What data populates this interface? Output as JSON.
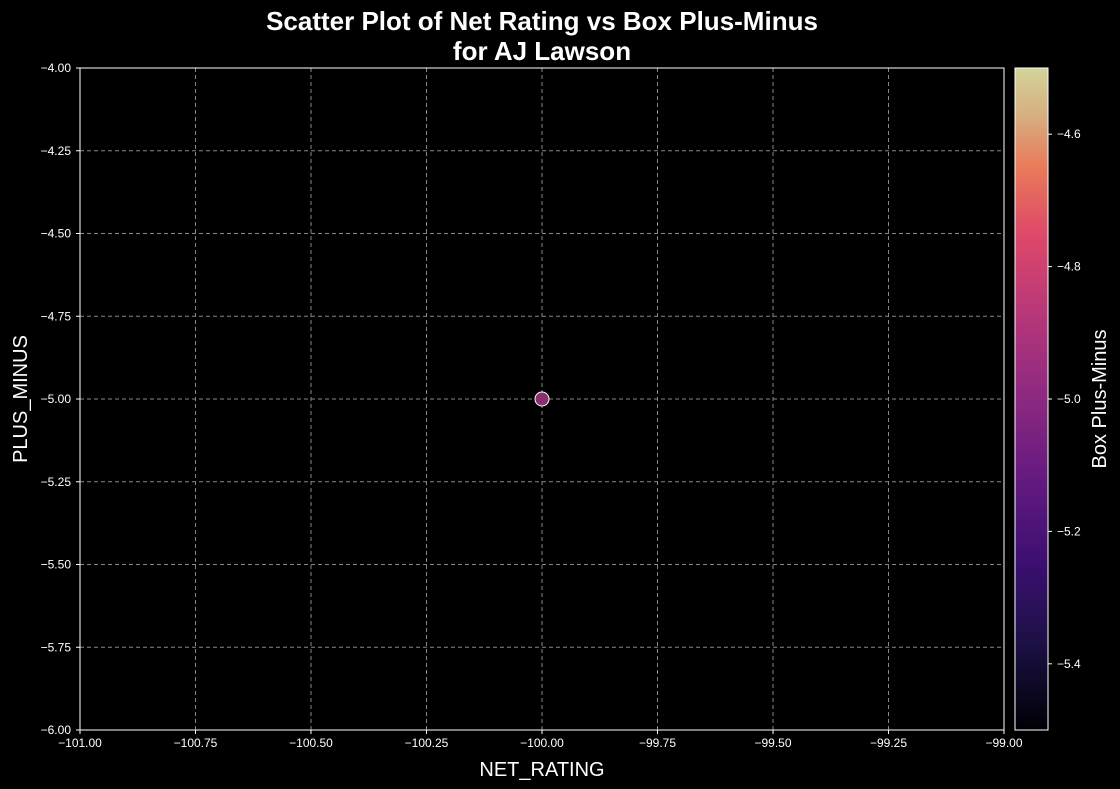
{
  "chart_data": {
    "type": "scatter",
    "title_lines": [
      "Scatter Plot of Net Rating vs Box Plus-Minus",
      "for AJ Lawson"
    ],
    "xlabel": "NET_RATING",
    "ylabel": "PLUS_MINUS",
    "xlim": [
      -101.0,
      -99.0
    ],
    "ylim": [
      -6.0,
      -4.0
    ],
    "xticks": [
      -101.0,
      -100.75,
      -100.5,
      -100.25,
      -100.0,
      -99.75,
      -99.5,
      -99.25,
      -99.0
    ],
    "xtick_labels": [
      "−101.00",
      "−100.75",
      "−100.50",
      "−100.25",
      "−100.00",
      "−99.75",
      "−99.50",
      "−99.25",
      "−99.00"
    ],
    "yticks": [
      -6.0,
      -5.75,
      -5.5,
      -5.25,
      -5.0,
      -4.75,
      -4.5,
      -4.25,
      -4.0
    ],
    "ytick_labels": [
      "−6.00",
      "−5.75",
      "−5.50",
      "−5.25",
      "−5.00",
      "−4.75",
      "−4.50",
      "−4.25",
      "−4.00"
    ],
    "grid": true,
    "points": [
      {
        "x": -100.0,
        "y": -5.0,
        "color_value": -5.0
      }
    ],
    "colorbar": {
      "label": "Box Plus-Minus",
      "colormap": "magma",
      "range": [
        -5.5,
        -4.5
      ],
      "ticks": [
        -5.4,
        -5.2,
        -5.0,
        -4.8,
        -4.6
      ],
      "tick_labels": [
        "−5.4",
        "−5.2",
        "−5.0",
        "−4.8",
        "−4.6"
      ]
    },
    "colors": {
      "background": "#000000",
      "axes": "#ffffff",
      "grid": "#888888",
      "point": "#8a2e6e",
      "point_edge": "#ffffff"
    }
  }
}
